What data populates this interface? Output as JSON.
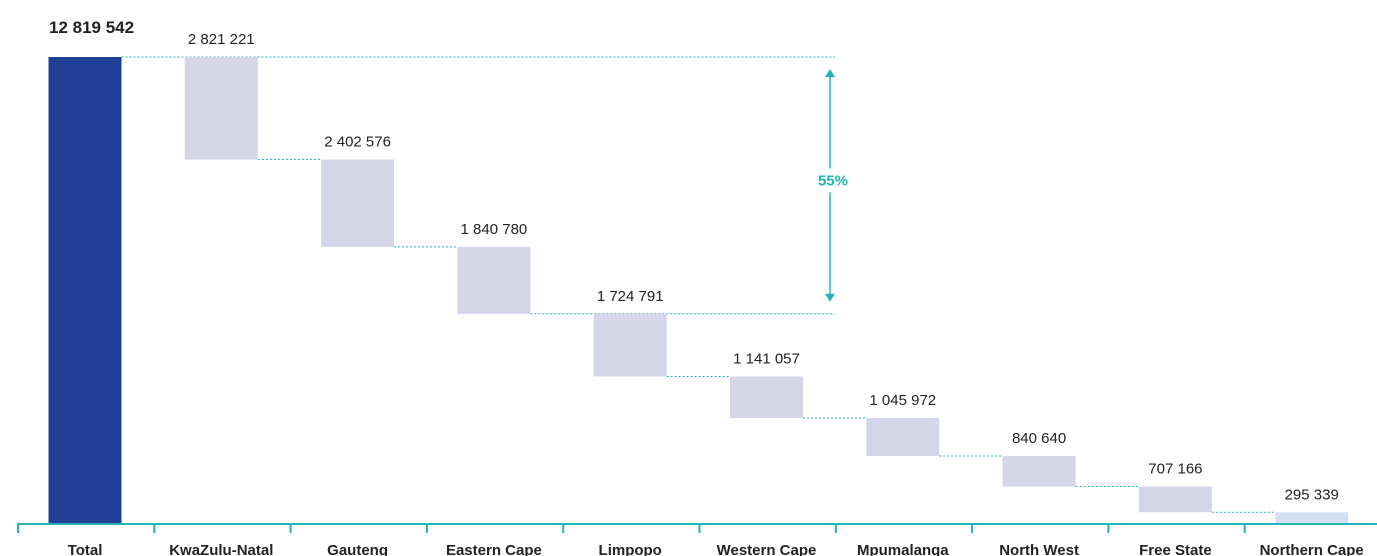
{
  "chart_data": {
    "type": "waterfall",
    "categories": [
      "Total",
      "KwaZulu-Natal",
      "Gauteng",
      "Eastern Cape",
      "Limpopo",
      "Western Cape",
      "Mpumalanga",
      "North West",
      "Free State",
      "Northern Cape"
    ],
    "values": [
      12819542,
      2821221,
      2402576,
      1840780,
      1724791,
      1141057,
      1045972,
      840640,
      707166,
      295339
    ],
    "value_labels": [
      "12 819 542",
      "2 821 221",
      "2 402 576",
      "1 840 780",
      "1 724 791",
      "1 141 057",
      "1 045 972",
      "840 640",
      "707 166",
      "295 339"
    ],
    "colors": [
      "#1f3f96",
      "#d5d5ea",
      "#d5d5ea",
      "#d5d5ea",
      "#d5d5ea",
      "#d5d5ea",
      "#d5d5ea",
      "#d5d5ea",
      "#d5d5ea",
      "#d3e0f2"
    ],
    "annotation": "55%",
    "annotation_color": "#23b5b5"
  }
}
